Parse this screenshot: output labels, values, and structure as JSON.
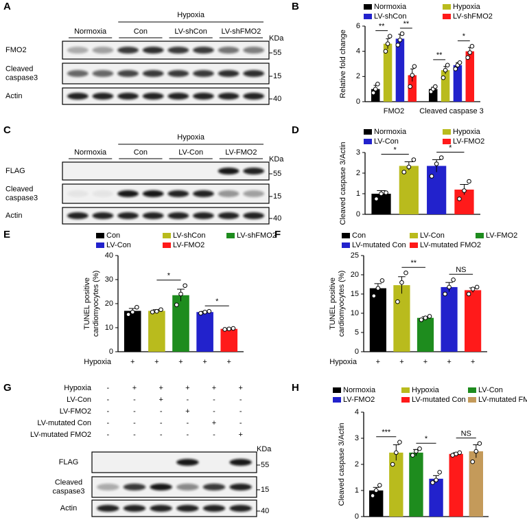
{
  "chart_data": [
    {
      "type": "bar",
      "panel": "B",
      "y_label": "Relative fold change",
      "categories": [
        "FMO2",
        "Cleaved caspase 3"
      ],
      "ylim": [
        0,
        6
      ],
      "yticks": [
        0,
        2,
        4,
        6
      ],
      "series": [
        {
          "name": "Normoxia",
          "color": "#000000",
          "values": [
            1.0,
            1.0
          ],
          "errors": [
            0.3,
            0.15
          ],
          "points": [
            [
              0.7,
              1.0,
              1.4
            ],
            [
              0.8,
              1.0,
              1.2
            ]
          ]
        },
        {
          "name": "Hypoxia",
          "color": "#b9bb1d",
          "values": [
            4.6,
            2.5
          ],
          "errors": [
            0.4,
            0.3
          ],
          "points": [
            [
              4.0,
              4.6,
              5.2
            ],
            [
              1.9,
              2.5,
              2.9
            ]
          ]
        },
        {
          "name": "LV-shCon",
          "color": "#2222cc",
          "values": [
            5.0,
            2.9
          ],
          "errors": [
            0.35,
            0.2
          ],
          "points": [
            [
              4.5,
              4.9,
              5.4
            ],
            [
              2.6,
              2.9,
              3.1
            ]
          ]
        },
        {
          "name": "LV-shFMO2",
          "color": "#ff1a1a",
          "values": [
            2.1,
            4.0
          ],
          "errors": [
            0.5,
            0.3
          ],
          "points": [
            [
              1.2,
              2.1,
              2.8
            ],
            [
              3.5,
              3.9,
              4.4
            ]
          ]
        }
      ],
      "annotations": [
        {
          "text": "**",
          "category": 0,
          "series": [
            0,
            1
          ]
        },
        {
          "text": "**",
          "category": 0,
          "series": [
            2,
            3
          ]
        },
        {
          "text": "**",
          "category": 1,
          "series": [
            0,
            1
          ]
        },
        {
          "text": "*",
          "category": 1,
          "series": [
            2,
            3
          ]
        }
      ]
    },
    {
      "type": "bar",
      "panel": "D",
      "y_label": "Cleaved caspase 3/Actin",
      "categories": [
        null
      ],
      "ylim": [
        0,
        3
      ],
      "yticks": [
        0,
        1,
        2,
        3
      ],
      "series": [
        {
          "name": "Normoxia",
          "color": "#000000",
          "values": [
            1.0
          ],
          "errors": [
            0.15
          ],
          "points": [
            [
              0.75,
              1.0,
              1.05
            ]
          ]
        },
        {
          "name": "Hypoxia",
          "color": "#b9bb1d",
          "values": [
            2.35
          ],
          "errors": [
            0.2
          ],
          "points": [
            [
              2.05,
              2.3,
              2.65
            ]
          ]
        },
        {
          "name": "LV-Con",
          "color": "#2222cc",
          "values": [
            2.35
          ],
          "errors": [
            0.3
          ],
          "points": [
            [
              1.85,
              2.45,
              2.75
            ]
          ]
        },
        {
          "name": "LV-FMO2",
          "color": "#ff1a1a",
          "values": [
            1.2
          ],
          "errors": [
            0.25
          ],
          "points": [
            [
              0.75,
              1.15,
              1.6
            ]
          ]
        }
      ],
      "annotations": [
        {
          "text": "*",
          "category": 0,
          "series": [
            0,
            1
          ]
        },
        {
          "text": "*",
          "category": 0,
          "series": [
            2,
            3
          ]
        }
      ]
    },
    {
      "type": "bar",
      "panel": "E",
      "y_label": [
        "TUNEL positive",
        "cardiomyocytes (%)"
      ],
      "categories": [
        null
      ],
      "ylim": [
        0,
        40
      ],
      "yticks": [
        0,
        10,
        20,
        30,
        40
      ],
      "series": [
        {
          "name": "Con",
          "color": "#000000",
          "values": [
            17
          ],
          "errors": [
            1
          ],
          "points": [
            [
              15.5,
              16.5,
              18.5
            ]
          ]
        },
        {
          "name": "LV-shCon",
          "color": "#b9bb1d",
          "values": [
            17
          ],
          "errors": [
            0.5
          ],
          "points": [
            [
              16.5,
              16.8,
              17.5
            ]
          ]
        },
        {
          "name": "LV-shFMO2",
          "color": "#1e8c1e",
          "values": [
            23.5
          ],
          "errors": [
            2.5
          ],
          "points": [
            [
              19.5,
              24,
              27.5
            ]
          ]
        },
        {
          "name": "LV-Con",
          "color": "#2222cc",
          "values": [
            16.5
          ],
          "errors": [
            0.3
          ],
          "points": [
            [
              16,
              16.5,
              16.8
            ]
          ]
        },
        {
          "name": "LV-FMO2",
          "color": "#ff1a1a",
          "values": [
            9.5
          ],
          "errors": [
            0.2
          ],
          "points": [
            [
              9.3,
              9.5,
              9.7
            ]
          ]
        }
      ],
      "annotations": [
        {
          "text": "*",
          "category": 0,
          "series": [
            1,
            2
          ]
        },
        {
          "text": "*",
          "category": 0,
          "series": [
            3,
            4
          ]
        }
      ],
      "condition_row": {
        "label": "Hypoxia",
        "marks": [
          "+",
          "+",
          "+",
          "+",
          "+"
        ]
      }
    },
    {
      "type": "bar",
      "panel": "F",
      "y_label": [
        "TUNEL positive",
        "cardiomyocytes (%)"
      ],
      "categories": [
        null
      ],
      "ylim": [
        0,
        25
      ],
      "yticks": [
        0,
        5,
        10,
        15,
        20,
        25
      ],
      "series": [
        {
          "name": "Con",
          "color": "#000000",
          "values": [
            16.5
          ],
          "errors": [
            1.2
          ],
          "points": [
            [
              14.5,
              16.5,
              18.5
            ]
          ]
        },
        {
          "name": "LV-Con",
          "color": "#b9bb1d",
          "values": [
            17.3
          ],
          "errors": [
            2.2
          ],
          "points": [
            [
              13,
              18,
              20.5
            ]
          ]
        },
        {
          "name": "LV-FMO2",
          "color": "#1e8c1e",
          "values": [
            8.8
          ],
          "errors": [
            0.3
          ],
          "points": [
            [
              8.3,
              8.8,
              9.2
            ]
          ]
        },
        {
          "name": "LV-mutated Con",
          "color": "#2222cc",
          "values": [
            16.8
          ],
          "errors": [
            1.2
          ],
          "points": [
            [
              15,
              16.8,
              18.7
            ]
          ]
        },
        {
          "name": "LV-mutated FMO2",
          "color": "#ff1a1a",
          "values": [
            16
          ],
          "errors": [
            0.6
          ],
          "points": [
            [
              15,
              16.3,
              16.8
            ]
          ]
        }
      ],
      "annotations": [
        {
          "text": "**",
          "category": 0,
          "series": [
            1,
            2
          ]
        },
        {
          "text": "NS",
          "category": 0,
          "series": [
            3,
            4
          ]
        }
      ],
      "condition_row": {
        "label": "Hypoxia",
        "marks": [
          "+",
          "+",
          "+",
          "+",
          "+"
        ]
      }
    },
    {
      "type": "bar",
      "panel": "H",
      "y_label": "Cleaved caspase 3/Actin",
      "categories": [
        null
      ],
      "ylim": [
        0,
        4
      ],
      "yticks": [
        0,
        1,
        2,
        3,
        4
      ],
      "series": [
        {
          "name": "Normoxia",
          "color": "#000000",
          "values": [
            1.0
          ],
          "errors": [
            0.12
          ],
          "points": [
            [
              0.8,
              1.0,
              1.2
            ]
          ]
        },
        {
          "name": "Hypoxia",
          "color": "#b9bb1d",
          "values": [
            2.45
          ],
          "errors": [
            0.3
          ],
          "points": [
            [
              2.0,
              2.45,
              2.85
            ]
          ]
        },
        {
          "name": "LV-Con",
          "color": "#1e8c1e",
          "values": [
            2.45
          ],
          "errors": [
            0.12
          ],
          "points": [
            [
              2.35,
              2.5,
              2.6
            ]
          ]
        },
        {
          "name": "LV-FMO2",
          "color": "#2222cc",
          "values": [
            1.45
          ],
          "errors": [
            0.12
          ],
          "points": [
            [
              1.3,
              1.4,
              1.7
            ]
          ]
        },
        {
          "name": "LV-mutated Con",
          "color": "#ff1a1a",
          "values": [
            2.4
          ],
          "errors": [
            0.05
          ],
          "points": [
            [
              2.35,
              2.4,
              2.45
            ]
          ]
        },
        {
          "name": "LV-mutated FMO2",
          "color": "#c49a5a",
          "values": [
            2.5
          ],
          "errors": [
            0.25
          ],
          "points": [
            [
              2.1,
              2.5,
              2.8
            ]
          ]
        }
      ],
      "annotations": [
        {
          "text": "***",
          "category": 0,
          "series": [
            0,
            1
          ]
        },
        {
          "text": "*",
          "category": 0,
          "series": [
            2,
            3
          ]
        },
        {
          "text": "NS",
          "category": 0,
          "series": [
            4,
            5
          ]
        }
      ]
    }
  ],
  "blots": [
    {
      "panel": "A",
      "header": "Hypoxia",
      "groups": [
        "Normoxia",
        "Con",
        "LV-shCon",
        "LV-shFMO2"
      ],
      "rows": [
        [
          "FMO2"
        ],
        [
          "Cleaved",
          "caspase3"
        ],
        [
          "Actin"
        ]
      ],
      "unit": "KDa",
      "markers": [
        55,
        15,
        40
      ]
    },
    {
      "panel": "C",
      "header": "Hypoxia",
      "groups": [
        "Normoxia",
        "Con",
        "LV-Con",
        "LV-FMO2"
      ],
      "rows": [
        [
          "FLAG"
        ],
        [
          "Cleaved",
          "caspase3"
        ],
        [
          "Actin"
        ]
      ],
      "unit": "KDa",
      "markers": [
        55,
        15,
        40
      ]
    },
    {
      "panel": "G",
      "rows": [
        [
          "FLAG"
        ],
        [
          "Cleaved",
          "caspase3"
        ],
        [
          "Actin"
        ]
      ],
      "unit": "KDa",
      "markers": [
        55,
        15,
        40
      ],
      "conditions": [
        {
          "label": "Hypoxia",
          "marks": [
            "-",
            "+",
            "+",
            "+",
            "+",
            "+"
          ]
        },
        {
          "label": "LV-Con",
          "marks": [
            "-",
            "-",
            "+",
            "-",
            "-",
            "-"
          ]
        },
        {
          "label": "LV-FMO2",
          "marks": [
            "-",
            "-",
            "-",
            "+",
            "-",
            "-"
          ]
        },
        {
          "label": "LV-mutated Con",
          "marks": [
            "-",
            "-",
            "-",
            "-",
            "+",
            "-"
          ]
        },
        {
          "label": "LV-mutated FMO2",
          "marks": [
            "-",
            "-",
            "-",
            "-",
            "-",
            "+"
          ]
        }
      ]
    }
  ]
}
